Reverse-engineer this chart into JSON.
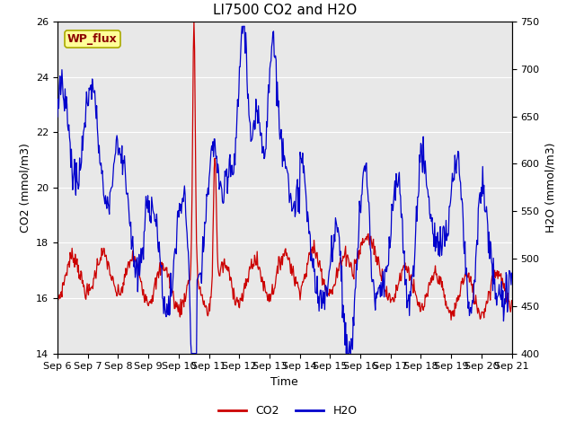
{
  "title": "LI7500 CO2 and H2O",
  "xlabel": "Time",
  "ylabel_left": "CO2 (mmol/m3)",
  "ylabel_right": "H2O (mmol/m3)",
  "annotation": "WP_flux",
  "annotation_color": "#8B0000",
  "annotation_bg": "#FFFF99",
  "co2_color": "#CC0000",
  "h2o_color": "#0000CC",
  "plot_bg_color": "#E8E8E8",
  "ylim_left": [
    14,
    26
  ],
  "ylim_right": [
    400,
    750
  ],
  "yticks_left": [
    14,
    16,
    18,
    20,
    22,
    24,
    26
  ],
  "yticks_right": [
    400,
    450,
    500,
    550,
    600,
    650,
    700,
    750
  ],
  "x_tick_labels": [
    "Sep 6",
    "Sep 7",
    "Sep 8",
    "Sep 9",
    "Sep 10",
    "Sep 11",
    "Sep 12",
    "Sep 13",
    "Sep 14",
    "Sep 15",
    "Sep 16",
    "Sep 17",
    "Sep 18",
    "Sep 19",
    "Sep 20",
    "Sep 21"
  ],
  "title_fontsize": 11,
  "axis_label_fontsize": 9,
  "tick_fontsize": 8,
  "legend_fontsize": 9,
  "linewidth": 0.9
}
